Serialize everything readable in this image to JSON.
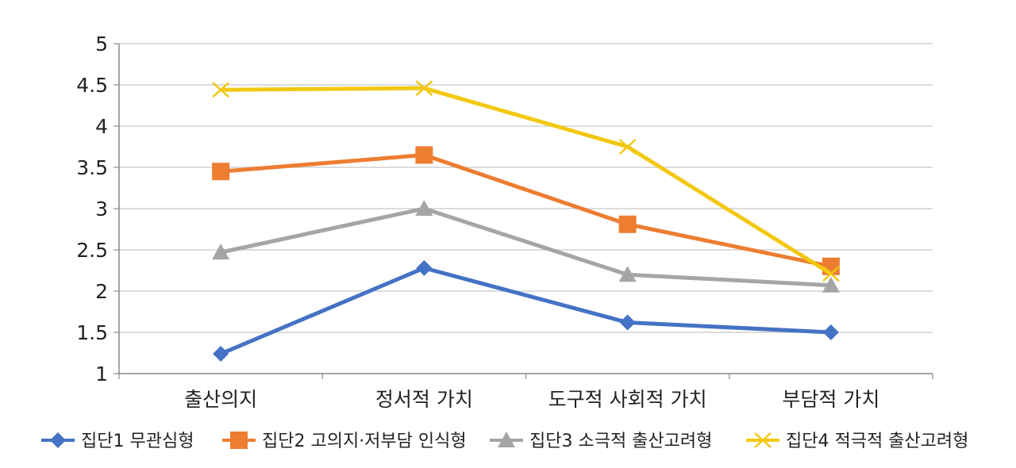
{
  "chart_data": {
    "type": "line",
    "title": "",
    "xlabel": "",
    "ylabel": "",
    "ylim": [
      1,
      5
    ],
    "yticks": [
      "1",
      "1.5",
      "2",
      "2.5",
      "3",
      "3.5",
      "4",
      "4.5",
      "5"
    ],
    "grid": true,
    "legend_position": "bottom",
    "categories": [
      "출산의지",
      "정서적 가치",
      "도구적 사회적 가치",
      "부담적 가치"
    ],
    "series": [
      {
        "name": "집단1 무관심형",
        "values": [
          1.24,
          2.28,
          1.62,
          1.5
        ],
        "color": "#4472C4",
        "marker": "diamond"
      },
      {
        "name": "집단2 고의지·저부담 인식형",
        "values": [
          3.45,
          3.65,
          2.81,
          2.3
        ],
        "color": "#ED7D31",
        "marker": "square"
      },
      {
        "name": "집단3 소극적 출산고려형",
        "values": [
          2.47,
          3.0,
          2.2,
          2.07
        ],
        "color": "#A5A5A5",
        "marker": "triangle"
      },
      {
        "name": "집단4 적극적 출산고려형",
        "values": [
          4.44,
          4.46,
          3.75,
          2.21
        ],
        "color": "#F2C811",
        "marker": "x"
      }
    ]
  }
}
